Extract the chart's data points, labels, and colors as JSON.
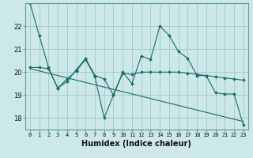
{
  "xlabel": "Humidex (Indice chaleur)",
  "background_color": "#cce8e8",
  "grid_color": "#aacccc",
  "line_color": "#1a6b6b",
  "x_ticks": [
    0,
    1,
    2,
    3,
    4,
    5,
    6,
    7,
    8,
    9,
    10,
    11,
    12,
    13,
    14,
    15,
    16,
    17,
    18,
    19,
    20,
    21,
    22,
    23
  ],
  "ylim": [
    17.5,
    23.0
  ],
  "yticks": [
    18,
    19,
    20,
    21,
    22
  ],
  "line1": [
    23.0,
    21.6,
    20.2,
    19.3,
    19.6,
    20.1,
    20.6,
    19.85,
    19.7,
    19.0,
    20.0,
    19.5,
    20.7,
    20.55,
    22.0,
    21.6,
    20.9,
    20.6,
    19.85,
    19.85,
    19.1,
    19.05,
    19.05,
    17.7
  ],
  "line2": [
    20.2,
    20.2,
    20.15,
    19.3,
    19.7,
    20.05,
    20.55,
    19.8,
    18.0,
    19.0,
    19.95,
    19.9,
    20.0,
    20.0,
    20.0,
    20.0,
    20.0,
    19.95,
    19.9,
    19.85,
    19.8,
    19.75,
    19.7,
    19.65
  ],
  "line3": [
    20.15,
    20.05,
    19.95,
    19.85,
    19.75,
    19.65,
    19.55,
    19.45,
    19.35,
    19.25,
    19.15,
    19.05,
    18.95,
    18.85,
    18.75,
    18.65,
    18.55,
    18.45,
    18.35,
    18.25,
    18.15,
    18.05,
    17.95,
    17.85
  ]
}
